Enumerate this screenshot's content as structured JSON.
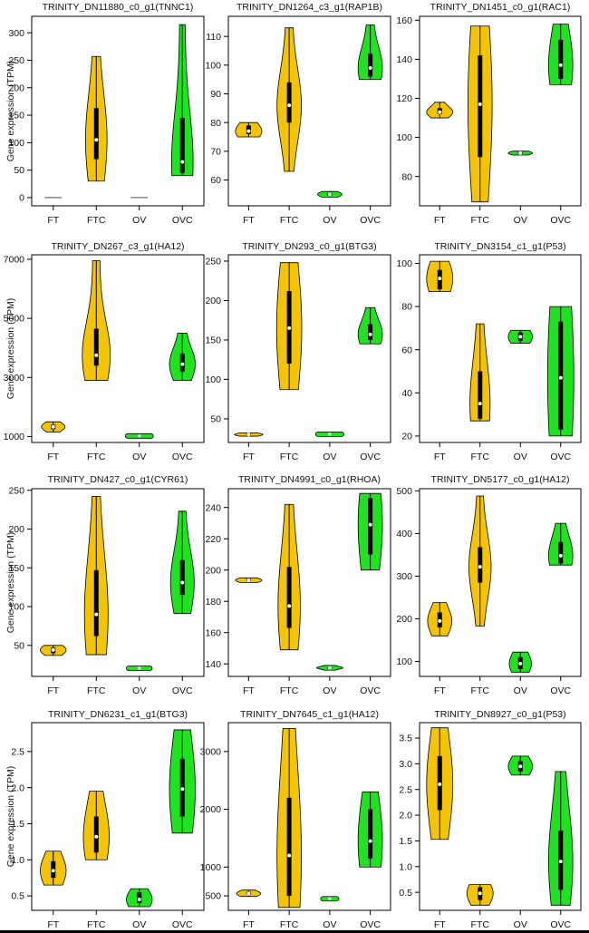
{
  "ylabel": "Gene expression (TPM)",
  "colors": {
    "FT": "#f5c400",
    "FTC": "#f5c400",
    "OV": "#1ee31e",
    "OVC": "#1ee31e"
  },
  "chart_data": [
    {
      "type": "violin",
      "title": "TRINITY_DN11880_c0_g1(TNNC1)",
      "categories": [
        "FT",
        "FTC",
        "OV",
        "OVC"
      ],
      "ylim": [
        -15,
        330
      ],
      "yticks": [
        0,
        50,
        100,
        150,
        200,
        250,
        300
      ],
      "values": [
        {
          "min": 0,
          "max": 0,
          "q1": 0,
          "median": 0,
          "q3": 0,
          "width": 0.4
        },
        {
          "min": 30,
          "max": 257,
          "q1": 70,
          "median": 105,
          "q3": 163,
          "width": 0.5
        },
        {
          "min": 0,
          "max": 0,
          "q1": 0,
          "median": 0,
          "q3": 0,
          "width": 0.4
        },
        {
          "min": 40,
          "max": 315,
          "q1": 45,
          "median": 65,
          "q3": 145,
          "width": 0.5
        }
      ]
    },
    {
      "type": "violin",
      "title": "TRINITY_DN1264_c3_g1(RAP1B)",
      "categories": [
        "FT",
        "FTC",
        "OV",
        "OVC"
      ],
      "ylim": [
        51,
        117
      ],
      "yticks": [
        60,
        70,
        80,
        90,
        100,
        110
      ],
      "values": [
        {
          "min": 75,
          "max": 80,
          "q1": 76,
          "median": 77,
          "q3": 79,
          "width": 0.65
        },
        {
          "min": 63,
          "max": 113,
          "q1": 80,
          "median": 86,
          "q3": 94,
          "width": 0.6
        },
        {
          "min": 54,
          "max": 56,
          "q1": 54.5,
          "median": 55,
          "q3": 55.5,
          "width": 0.6
        },
        {
          "min": 95,
          "max": 114,
          "q1": 96,
          "median": 99,
          "q3": 104,
          "width": 0.6
        }
      ]
    },
    {
      "type": "violin",
      "title": "TRINITY_DN1451_c0_g1(RAC1)",
      "categories": [
        "FT",
        "FTC",
        "OV",
        "OVC"
      ],
      "ylim": [
        65,
        162
      ],
      "yticks": [
        80,
        100,
        120,
        140,
        160
      ],
      "values": [
        {
          "min": 110,
          "max": 118,
          "q1": 112,
          "median": 113,
          "q3": 115,
          "width": 0.65
        },
        {
          "min": 67,
          "max": 157,
          "q1": 90,
          "median": 117,
          "q3": 142,
          "width": 0.6
        },
        {
          "min": 91,
          "max": 93,
          "q1": 91.5,
          "median": 92,
          "q3": 92.5,
          "width": 0.6
        },
        {
          "min": 127,
          "max": 158,
          "q1": 130,
          "median": 137,
          "q3": 150,
          "width": 0.6
        }
      ]
    },
    {
      "type": "violin",
      "title": "TRINITY_DN267_c3_g1(HA12)",
      "categories": [
        "FT",
        "FTC",
        "OV",
        "OVC"
      ],
      "ylim": [
        800,
        7150
      ],
      "yticks": [
        1000,
        3000,
        5000,
        7000
      ],
      "values": [
        {
          "min": 1150,
          "max": 1500,
          "q1": 1250,
          "median": 1330,
          "q3": 1400,
          "width": 0.55
        },
        {
          "min": 2900,
          "max": 6950,
          "q1": 3400,
          "median": 3750,
          "q3": 4650,
          "width": 0.65
        },
        {
          "min": 980,
          "max": 1060,
          "q1": 1000,
          "median": 1020,
          "q3": 1040,
          "width": 0.65
        },
        {
          "min": 2900,
          "max": 4500,
          "q1": 3200,
          "median": 3450,
          "q3": 3800,
          "width": 0.6
        }
      ]
    },
    {
      "type": "violin",
      "title": "TRINITY_DN293_c0_g1(BTG3)",
      "categories": [
        "FT",
        "FTC",
        "OV",
        "OVC"
      ],
      "ylim": [
        20,
        258
      ],
      "yticks": [
        50,
        100,
        150,
        200,
        250
      ],
      "values": [
        {
          "min": 28,
          "max": 32,
          "q1": 29,
          "median": 30,
          "q3": 31,
          "width": 0.7
        },
        {
          "min": 87,
          "max": 248,
          "q1": 120,
          "median": 165,
          "q3": 212,
          "width": 0.62
        },
        {
          "min": 29,
          "max": 32,
          "q1": 30,
          "median": 30.5,
          "q3": 31,
          "width": 0.7
        },
        {
          "min": 145,
          "max": 191,
          "q1": 150,
          "median": 157,
          "q3": 170,
          "width": 0.6
        }
      ]
    },
    {
      "type": "violin",
      "title": "TRINITY_DN3154_c1_g1(P53)",
      "categories": [
        "FT",
        "FTC",
        "OV",
        "OVC"
      ],
      "ylim": [
        17,
        104
      ],
      "yticks": [
        20,
        40,
        60,
        80,
        100
      ],
      "values": [
        {
          "min": 87,
          "max": 101,
          "q1": 88,
          "median": 93,
          "q3": 97,
          "width": 0.65
        },
        {
          "min": 27,
          "max": 72,
          "q1": 28,
          "median": 35,
          "q3": 50,
          "width": 0.5
        },
        {
          "min": 63,
          "max": 69,
          "q1": 64,
          "median": 66,
          "q3": 68,
          "width": 0.6
        },
        {
          "min": 20,
          "max": 80,
          "q1": 23,
          "median": 47,
          "q3": 73,
          "width": 0.65
        }
      ]
    },
    {
      "type": "violin",
      "title": "TRINITY_DN427_c0_g1(CYR61)",
      "categories": [
        "FT",
        "FTC",
        "OV",
        "OVC"
      ],
      "ylim": [
        10,
        252
      ],
      "yticks": [
        50,
        100,
        150,
        200,
        250
      ],
      "values": [
        {
          "min": 37,
          "max": 50,
          "q1": 40,
          "median": 44,
          "q3": 47,
          "width": 0.6
        },
        {
          "min": 38,
          "max": 242,
          "q1": 62,
          "median": 90,
          "q3": 147,
          "width": 0.55
        },
        {
          "min": 19,
          "max": 22,
          "q1": 20,
          "median": 20.5,
          "q3": 21,
          "width": 0.6
        },
        {
          "min": 91,
          "max": 223,
          "q1": 115,
          "median": 131,
          "q3": 160,
          "width": 0.55
        }
      ]
    },
    {
      "type": "violin",
      "title": "TRINITY_DN4991_c0_g1(RHOA)",
      "categories": [
        "FT",
        "FTC",
        "OV",
        "OVC"
      ],
      "ylim": [
        132,
        252
      ],
      "yticks": [
        140,
        160,
        180,
        200,
        220,
        240
      ],
      "values": [
        {
          "min": 192,
          "max": 195,
          "q1": 193,
          "median": 193.5,
          "q3": 194.5,
          "width": 0.65
        },
        {
          "min": 149,
          "max": 242,
          "q1": 163,
          "median": 177,
          "q3": 202,
          "width": 0.55
        },
        {
          "min": 136,
          "max": 139,
          "q1": 137,
          "median": 137.5,
          "q3": 138,
          "width": 0.65
        },
        {
          "min": 200,
          "max": 249,
          "q1": 210,
          "median": 229,
          "q3": 246,
          "width": 0.6
        }
      ]
    },
    {
      "type": "violin",
      "title": "TRINITY_DN5177_c0_g1(HA12)",
      "categories": [
        "FT",
        "FTC",
        "OV",
        "OVC"
      ],
      "ylim": [
        65,
        505
      ],
      "yticks": [
        100,
        200,
        300,
        400,
        500
      ],
      "values": [
        {
          "min": 160,
          "max": 238,
          "q1": 180,
          "median": 195,
          "q3": 215,
          "width": 0.6
        },
        {
          "min": 183,
          "max": 488,
          "q1": 285,
          "median": 322,
          "q3": 368,
          "width": 0.55
        },
        {
          "min": 75,
          "max": 122,
          "q1": 82,
          "median": 95,
          "q3": 110,
          "width": 0.55
        },
        {
          "min": 326,
          "max": 424,
          "q1": 330,
          "median": 348,
          "q3": 380,
          "width": 0.6
        }
      ]
    },
    {
      "type": "violin",
      "title": "TRINITY_DN6231_c1_g1(BTG3)",
      "categories": [
        "FT",
        "FTC",
        "OV",
        "OVC"
      ],
      "ylim": [
        0.3,
        2.9
      ],
      "yticks": [
        0.5,
        1.0,
        1.5,
        2.0,
        2.5
      ],
      "values": [
        {
          "min": 0.65,
          "max": 1.12,
          "q1": 0.75,
          "median": 0.85,
          "q3": 0.98,
          "width": 0.6
        },
        {
          "min": 1.0,
          "max": 1.95,
          "q1": 1.1,
          "median": 1.32,
          "q3": 1.6,
          "width": 0.6
        },
        {
          "min": 0.35,
          "max": 0.6,
          "q1": 0.4,
          "median": 0.45,
          "q3": 0.55,
          "width": 0.6
        },
        {
          "min": 1.37,
          "max": 2.8,
          "q1": 1.6,
          "median": 1.98,
          "q3": 2.4,
          "width": 0.6
        }
      ]
    },
    {
      "type": "violin",
      "title": "TRINITY_DN7645_c1_g1(HA12)",
      "categories": [
        "FT",
        "FTC",
        "OV",
        "OVC"
      ],
      "ylim": [
        250,
        3500
      ],
      "yticks": [
        500,
        1000,
        2000,
        3000
      ],
      "values": [
        {
          "min": 490,
          "max": 600,
          "q1": 520,
          "median": 540,
          "q3": 570,
          "width": 0.6
        },
        {
          "min": 300,
          "max": 3400,
          "q1": 500,
          "median": 1200,
          "q3": 2200,
          "width": 0.6
        },
        {
          "min": 440,
          "max": 460,
          "q1": 445,
          "median": 450,
          "q3": 455,
          "width": 0.45
        },
        {
          "min": 1000,
          "max": 2300,
          "q1": 1150,
          "median": 1450,
          "q3": 2000,
          "width": 0.6
        }
      ]
    },
    {
      "type": "violin",
      "title": "TRINITY_DN8927_c0_g1(P53)",
      "categories": [
        "FT",
        "FTC",
        "OV",
        "OVC"
      ],
      "ylim": [
        0.15,
        3.8
      ],
      "yticks": [
        0.5,
        1.0,
        1.5,
        2.0,
        2.5,
        3.0,
        3.5
      ],
      "values": [
        {
          "min": 1.53,
          "max": 3.7,
          "q1": 2.1,
          "median": 2.6,
          "q3": 3.15,
          "width": 0.65
        },
        {
          "min": 0.25,
          "max": 0.65,
          "q1": 0.35,
          "median": 0.48,
          "q3": 0.6,
          "width": 0.65
        },
        {
          "min": 2.78,
          "max": 3.15,
          "q1": 2.85,
          "median": 2.95,
          "q3": 3.05,
          "width": 0.6
        },
        {
          "min": 0.25,
          "max": 2.85,
          "q1": 0.55,
          "median": 1.1,
          "q3": 1.7,
          "width": 0.6
        }
      ]
    }
  ]
}
